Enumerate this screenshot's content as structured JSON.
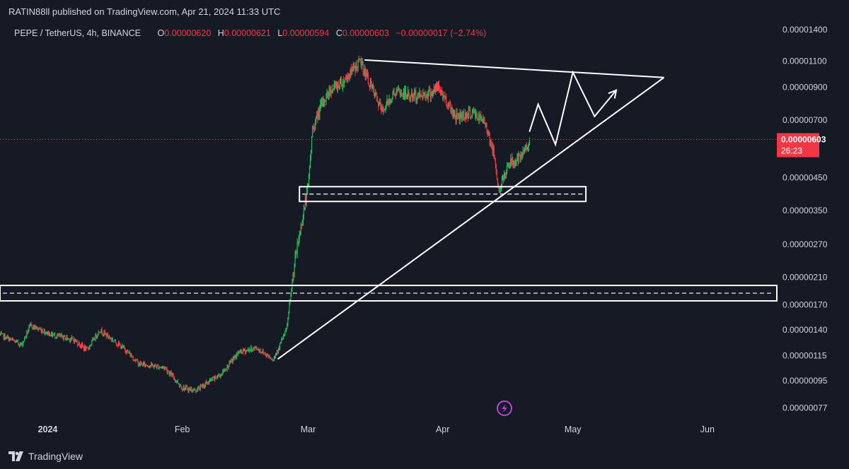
{
  "header": {
    "published": "RATIN88ll published on TradingView.com, Apr 21, 2024 11:33 UTC"
  },
  "legend": {
    "symbol": "PEPE / TetherUS, 4h, BINANCE",
    "o_label": "O",
    "o_value": "0.00000620",
    "h_label": "H",
    "h_value": "0.00000621",
    "l_label": "L",
    "l_value": "0.00000594",
    "c_label": "C",
    "c_value": "0.00000603",
    "change": "−0.00000017 (−2.74%)"
  },
  "price_badge": {
    "price": "0.00000603",
    "countdown": "26:23"
  },
  "footer": {
    "brand": "TradingView"
  },
  "colors": {
    "background": "#161a25",
    "up": "#22c55e",
    "down": "#f23645",
    "annotation": "#ffffff",
    "badge": "#f23645",
    "flash_icon": "#b845d8"
  },
  "icons": {
    "logo": "tradingview-logo-icon",
    "flash": "lightning-icon"
  },
  "chart_data": {
    "type": "line",
    "chart_style": "candlestick",
    "scale": "log",
    "y_ticks": [
      "0.00001400",
      "0.00001100",
      "0.00000900",
      "0.00000700",
      "0.00000450",
      "0.00000350",
      "0.00000270",
      "0.00000210",
      "0.00000170",
      "0.00000140",
      "0.00000115",
      "0.00000095",
      "0.00000077"
    ],
    "x_ticks": [
      "2024",
      "Feb",
      "Mar",
      "Apr",
      "May",
      "Jun"
    ],
    "x_ticks_iso": [
      "2024-01-01",
      "2024-02-01",
      "2024-03-01",
      "2024-04-01",
      "2024-05-01",
      "2024-06-01"
    ],
    "x_range": [
      "2023-12-21",
      "2024-06-17"
    ],
    "y_range": [
      7.2e-07,
      1.51e-05
    ],
    "last_price": 6.03e-06,
    "series": [
      {
        "x": [
          "2023-12-21",
          "2023-12-26",
          "2023-12-28",
          "2024-01-02",
          "2024-01-07",
          "2024-01-10",
          "2024-01-13",
          "2024-01-19",
          "2024-01-22",
          "2024-01-28",
          "2024-02-01",
          "2024-02-04",
          "2024-02-10",
          "2024-02-14",
          "2024-02-18",
          "2024-02-22",
          "2024-02-25",
          "2024-02-27",
          "2024-02-29",
          "2024-03-01",
          "2024-03-02",
          "2024-03-04",
          "2024-03-06",
          "2024-03-09",
          "2024-03-13",
          "2024-03-15",
          "2024-03-18",
          "2024-03-21",
          "2024-03-25",
          "2024-03-29",
          "2024-03-31",
          "2024-04-04",
          "2024-04-08",
          "2024-04-11",
          "2024-04-13",
          "2024-04-14",
          "2024-04-16",
          "2024-04-19",
          "2024-04-21"
        ],
        "y": [
          1.35e-06,
          1.25e-06,
          1.45e-06,
          1.35e-06,
          1.3e-06,
          1.2e-06,
          1.4e-06,
          1.2e-06,
          1.08e-06,
          1.05e-06,
          9e-07,
          8.8e-07,
          1e-06,
          1.18e-06,
          1.22e-06,
          1.12e-06,
          1.4e-06,
          2.4e-06,
          3.5e-06,
          4.2e-06,
          6.5e-06,
          7.8e-06,
          8.8e-06,
          9.4e-06,
          1.1e-05,
          9.4e-06,
          7.5e-06,
          8.7e-06,
          8.4e-06,
          8.6e-06,
          9e-06,
          7.2e-06,
          7.4e-06,
          6.8e-06,
          5.2e-06,
          4e-06,
          5e-06,
          5.2e-06,
          6.03e-06
        ]
      }
    ],
    "annotations": {
      "support_zone_upper": {
        "y_top": 4.2e-06,
        "y_bottom": 3.75e-06,
        "x_start": "2024-02-28",
        "x_end": "2024-05-04"
      },
      "support_zone_lower": {
        "y_top": 1.97e-06,
        "y_bottom": 1.75e-06,
        "x_start": "2023-12-21",
        "x_end": "2024-06-17"
      },
      "triangle_upper_line": {
        "x": [
          "2024-03-14",
          "2024-05-22"
        ],
        "y": [
          1.11e-05,
          9.7e-06
        ]
      },
      "triangle_lower_line": {
        "x": [
          "2024-02-23",
          "2024-05-22"
        ],
        "y": [
          1.12e-06,
          9.7e-06
        ]
      },
      "projection_path": {
        "x": [
          "2024-04-21",
          "2024-04-23",
          "2024-04-27",
          "2024-05-01",
          "2024-05-06",
          "2024-05-11"
        ],
        "y": [
          6.4e-06,
          7.9e-06,
          5.8e-06,
          1.01e-05,
          7.2e-06,
          8.8e-06
        ]
      }
    }
  }
}
